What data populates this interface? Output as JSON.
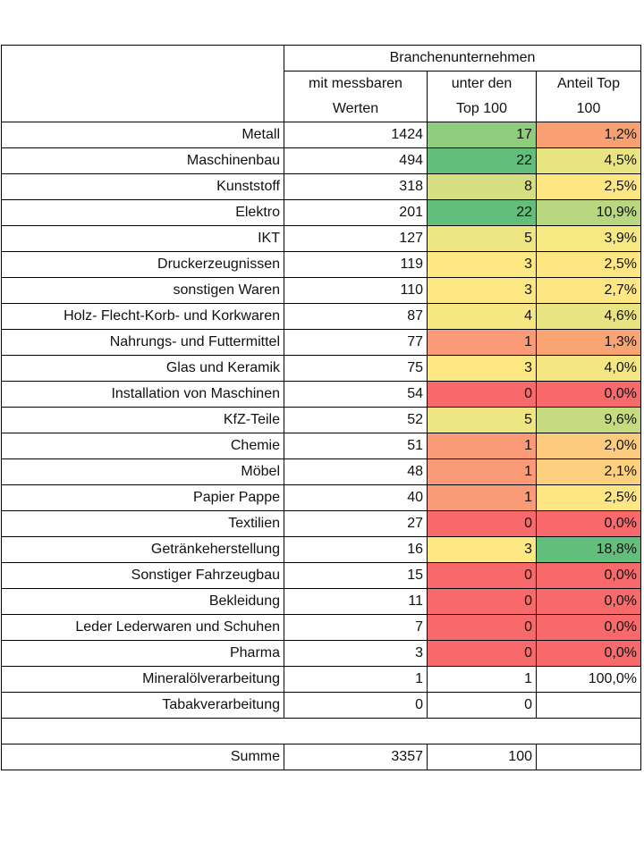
{
  "header": {
    "group_title": "Branchenunternehmen",
    "col1": [
      "mit messbaren",
      "Werten"
    ],
    "col2": [
      "unter den",
      "Top 100"
    ],
    "col3": [
      "Anteil Top",
      "100"
    ]
  },
  "rows": [
    {
      "label": "Metall",
      "count": "1424",
      "top": "17",
      "share": "1,2%",
      "top_color": "#8fcc7b",
      "share_color": "#f9a072"
    },
    {
      "label": "Maschinenbau",
      "count": "494",
      "top": "22",
      "share": "4,5%",
      "top_color": "#63be7b",
      "share_color": "#e9e482"
    },
    {
      "label": "Kunststoff",
      "count": "318",
      "top": "8",
      "share": "2,5%",
      "top_color": "#d5de81",
      "share_color": "#fee682"
    },
    {
      "label": "Elektro",
      "count": "201",
      "top": "22",
      "share": "10,9%",
      "top_color": "#63be7b",
      "share_color": "#b9d780"
    },
    {
      "label": "IKT",
      "count": "127",
      "top": "5",
      "share": "3,9%",
      "top_color": "#eee683",
      "share_color": "#f6e883"
    },
    {
      "label": "Druckerzeugnissen",
      "count": "119",
      "top": "3",
      "share": "2,5%",
      "top_color": "#fee883",
      "share_color": "#fee682"
    },
    {
      "label": "sonstigen Waren",
      "count": "110",
      "top": "3",
      "share": "2,7%",
      "top_color": "#fee883",
      "share_color": "#fee783"
    },
    {
      "label": "Holz- Flecht-Korb- und Korkwaren",
      "count": "87",
      "top": "4",
      "share": "4,6%",
      "top_color": "#f6e783",
      "share_color": "#e9e482"
    },
    {
      "label": "Nahrungs- und Futtermittel",
      "count": "77",
      "top": "1",
      "share": "1,3%",
      "top_color": "#fa9a76",
      "share_color": "#faa474"
    },
    {
      "label": "Glas und Keramik",
      "count": "75",
      "top": "3",
      "share": "4,0%",
      "top_color": "#fee883",
      "share_color": "#f4e783"
    },
    {
      "label": "Installation von Maschinen",
      "count": "54",
      "top": "0",
      "share": "0,0%",
      "top_color": "#f8696b",
      "share_color": "#f8696b"
    },
    {
      "label": "KfZ-Teile",
      "count": "52",
      "top": "5",
      "share": "9,6%",
      "top_color": "#eee683",
      "share_color": "#c5da81"
    },
    {
      "label": "Chemie",
      "count": "51",
      "top": "1",
      "share": "2,0%",
      "top_color": "#fa9a76",
      "share_color": "#fdcb7e"
    },
    {
      "label": "Möbel",
      "count": "48",
      "top": "1",
      "share": "2,1%",
      "top_color": "#fa9a76",
      "share_color": "#fdd07f"
    },
    {
      "label": "Papier Pappe",
      "count": "40",
      "top": "1",
      "share": "2,5%",
      "top_color": "#fa9a76",
      "share_color": "#fee682"
    },
    {
      "label": "Textilien",
      "count": "27",
      "top": "0",
      "share": "0,0%",
      "top_color": "#f8696b",
      "share_color": "#f8696b"
    },
    {
      "label": "Getränkeherstellung",
      "count": "16",
      "top": "3",
      "share": "18,8%",
      "top_color": "#fee883",
      "share_color": "#63be7b"
    },
    {
      "label": "Sonstiger Fahrzeugbau",
      "count": "15",
      "top": "0",
      "share": "0,0%",
      "top_color": "#f8696b",
      "share_color": "#f8696b"
    },
    {
      "label": "Bekleidung",
      "count": "11",
      "top": "0",
      "share": "0,0%",
      "top_color": "#f8696b",
      "share_color": "#f8696b"
    },
    {
      "label": "Leder  Lederwaren und Schuhen",
      "count": "7",
      "top": "0",
      "share": "0,0%",
      "top_color": "#f8696b",
      "share_color": "#f8696b"
    },
    {
      "label": "Pharma",
      "count": "3",
      "top": "0",
      "share": "0,0%",
      "top_color": "#f8696b",
      "share_color": "#f8696b"
    },
    {
      "label": "Mineralölverarbeitung",
      "count": "1",
      "top": "1",
      "share": "100,0%",
      "top_color": "#ffffff",
      "share_color": "#ffffff"
    },
    {
      "label": "Tabakverarbeitung",
      "count": "0",
      "top": "0",
      "share": "",
      "top_color": "#ffffff",
      "share_color": "#ffffff"
    }
  ],
  "total": {
    "label": "Summe",
    "count": "3357",
    "top": "100",
    "share": ""
  }
}
